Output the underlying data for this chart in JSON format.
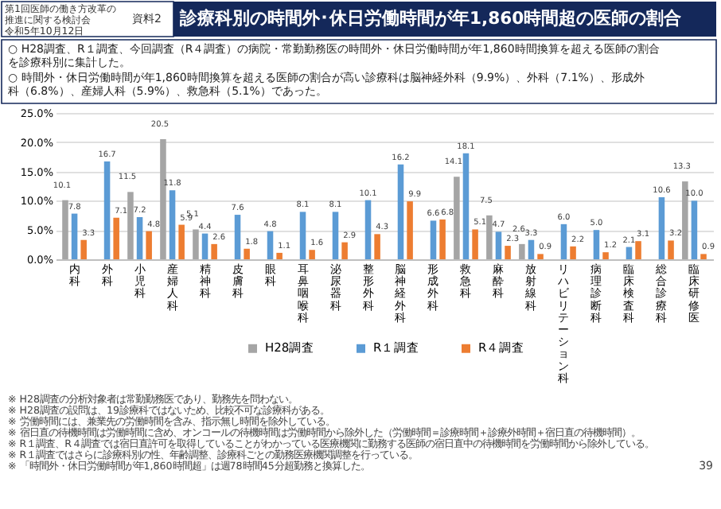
{
  "chart_data": {
    "type": "bar",
    "title": "診療科別の時間外･休日労働時間が年1,860時間超の医師の割合",
    "categories": [
      "内科",
      "外科",
      "小児科",
      "産婦人科",
      "精神科",
      "皮膚科",
      "眼科",
      "耳鼻咽喉科",
      "泌尿器科",
      "整形外科",
      "脳神経外科",
      "形成外科",
      "救急科",
      "麻酔科",
      "放射線科",
      "リハビリテーション科",
      "病理診断科",
      "臨床検査科",
      "総合診療科",
      "臨床研修医"
    ],
    "series": [
      {
        "name": "H28調査",
        "color": "#a5a5a5",
        "values": [
          10.1,
          null,
          11.5,
          20.5,
          5.1,
          null,
          null,
          null,
          null,
          null,
          null,
          null,
          14.1,
          7.5,
          2.6,
          null,
          null,
          null,
          null,
          13.3
        ],
        "value_labels": [
          "10.1",
          null,
          "11.5",
          "20.5",
          "5.1",
          null,
          null,
          null,
          null,
          null,
          null,
          null,
          "14.1",
          "7.5",
          "2.6",
          null,
          null,
          null,
          null,
          "13.3"
        ]
      },
      {
        "name": "R１調査",
        "color": "#5b9bd5",
        "values": [
          7.8,
          16.7,
          7.2,
          11.8,
          4.4,
          7.6,
          4.8,
          8.1,
          8.1,
          10.1,
          16.2,
          6.6,
          18.1,
          4.7,
          3.3,
          6.0,
          5.0,
          2.1,
          10.6,
          10.0
        ],
        "value_labels": [
          "7.8",
          "16.7",
          "7.2",
          "11.8",
          "4.4",
          "7.6",
          "4.8",
          "8.1",
          "8.1",
          "10.1",
          "16.2",
          "6.6",
          "18.1",
          "4.7",
          "3.3",
          "6.0",
          "5.0",
          "2.1",
          "10.6",
          "10.0"
        ]
      },
      {
        "name": "R４調査",
        "color": "#ed7d31",
        "values": [
          3.3,
          7.1,
          4.8,
          5.9,
          2.6,
          1.8,
          1.1,
          1.6,
          2.9,
          4.3,
          9.9,
          6.8,
          5.1,
          2.3,
          0.9,
          2.2,
          1.2,
          3.1,
          3.2,
          0.9
        ],
        "value_labels": [
          "3.3",
          "7.1",
          "4.8",
          "5.9",
          "2.6",
          "1.8",
          "1.1",
          "1.6",
          "2.9",
          "4.3",
          "9.9",
          "6.8",
          "5.1",
          "2.3",
          "0.9",
          "2.2",
          "1.2",
          "3.1",
          "3.2",
          "0.9"
        ]
      }
    ],
    "ylim": [
      0,
      25
    ],
    "yticks": [
      {
        "value": 0,
        "label": "0.0%"
      },
      {
        "value": 5,
        "label": "5.0%"
      },
      {
        "value": 10,
        "label": "10.0%"
      },
      {
        "value": 15,
        "label": "15.0%"
      },
      {
        "value": 20,
        "label": "20.0%"
      },
      {
        "value": 25,
        "label": "25.0%"
      }
    ],
    "grid": "y",
    "legend": "bottom",
    "annotations": [
      "第1回医師の働き方改革の推進に関する検討会",
      "令和5年10月12日",
      "資料2",
      "○ H28調査、R１調査、今回調査（R４調査）の病院・常勤勤務医の時間外・休日労働時間が年1,860時間換算を超える医師の割合を診療科別に集計した。",
      "○ 時間外・休日労働時間が年1,860時間換算を超える医師の割合が高い診療科は脳神経外科（9.9%）、外科（7.1%）、形成外科（6.8%）、産婦人科（5.9%）、救急科（5.1%）であった。",
      "※ H28調査の分析対象者は常勤勤務医であり、勤務先を問わない。",
      "※ H28調査の設問は、19診療科ではないため、比較不可な診療科がある。",
      "※ 労働時間には、兼業先の労働時間を含み、指示無し時間を除外している。",
      "※ 宿日直の待機時間は労働時間に含め、オンコールの待機時間は労働時間から除外した（労働時間＝診療時間＋診療外時間＋宿日直の待機時間）。",
      "※ R１調査、R４調査では宿日直許可を取得していることがわかっている医療機関に勤務する医師の宿日直中の待機時間を労働時間から除外している。",
      "※ R１調査ではさらに診療科別の性、年齢調整、診療科ごとの勤務医療機関調整を行っている。",
      "※ 「時間外・休日労働時間が年1,860時間超」は週78時間45分超勤務と換算した。",
      "39"
    ]
  }
}
